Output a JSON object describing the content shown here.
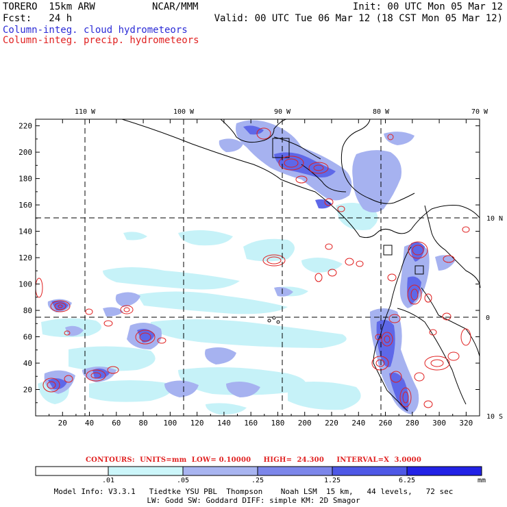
{
  "header": {
    "model": "TORERO  15km ARW",
    "org": "NCAR/MMM",
    "init": "Init: 00 UTC Mon 05 Mar 12",
    "fcst": "Fcst:   24 h",
    "valid": "Valid: 00 UTC Tue 06 Mar 12 (18 CST Mon 05 Mar 12)",
    "line_blue": "Column-integ. cloud hydrometeors",
    "line_red": "Column-integ. precip. hydrometeors"
  },
  "map": {
    "lon_labels": [
      "110 W",
      "100 W",
      "90 W",
      "80 W",
      "70 W"
    ],
    "lat_labels": [
      "10 N",
      "0",
      "10 S"
    ],
    "x_ticks": [
      "20",
      "40",
      "60",
      "80",
      "100",
      "120",
      "140",
      "160",
      "180",
      "200",
      "220",
      "240",
      "260",
      "280",
      "300",
      "320"
    ],
    "y_ticks": [
      "20",
      "40",
      "60",
      "80",
      "100",
      "120",
      "140",
      "160",
      "180",
      "200",
      "220"
    ],
    "grid_x_range": [
      0,
      330
    ],
    "grid_y_range": [
      0,
      225
    ],
    "colors": {
      "cloud_light": "#c6f2f8",
      "cloud_mid": "#a6b2f0",
      "cloud_dark": "#5e68e8",
      "precip_contour": "#e02020",
      "coast": "#000000"
    }
  },
  "contour_info": "CONTOURS:  UNITS=mm  LOW= 0.10000     HIGH=  24.300     INTERVAL=X  3.0000",
  "colorbar": {
    "labels": [
      ".01",
      ".05",
      ".25",
      "1.25",
      "6.25"
    ],
    "unit": "mm",
    "colors": [
      "#ffffff",
      "#ccf6fa",
      "#a8b4f0",
      "#7c86ea",
      "#4e58e6",
      "#2222e6"
    ]
  },
  "model_info": {
    "line1": "Model Info: V3.3.1   Tiedtke YSU PBL  Thompson    Noah LSM  15 km,   44 levels,   72 sec",
    "line2": "LW: Godd SW: Goddard DIFF: simple KM: 2D Smagor"
  }
}
